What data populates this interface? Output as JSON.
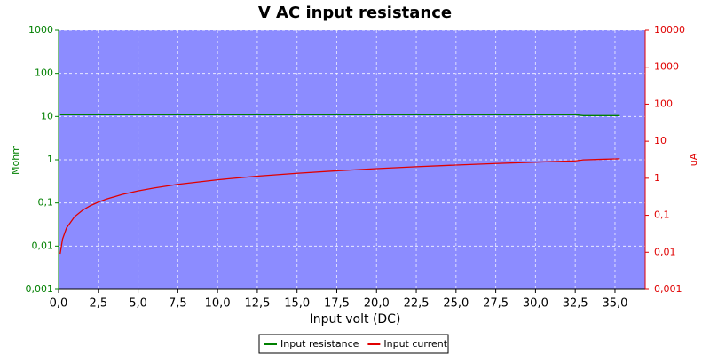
{
  "chart_data": {
    "type": "line",
    "title": "V AC input resistance",
    "xlabel": "Input volt (DC)",
    "ylabel": "Mohm",
    "y2label": "uA",
    "x": [
      0.1,
      0.25,
      0.5,
      1,
      1.5,
      2,
      2.5,
      3,
      4,
      5,
      6,
      7.5,
      10,
      12.5,
      15,
      17.5,
      20,
      22.5,
      25,
      27.5,
      30,
      32.5,
      33,
      34,
      35.3
    ],
    "series": [
      {
        "name": "Input resistance",
        "color": "#008000",
        "values": [
          11,
          11,
          11,
          11,
          11,
          11,
          11,
          11,
          11,
          11,
          11,
          11,
          11,
          11,
          11,
          11,
          11,
          11,
          11,
          11,
          11,
          11,
          10.5,
          10.5,
          10.5
        ]
      },
      {
        "name": "Input current",
        "color": "#e00000",
        "axis": "y2",
        "values": [
          0.0091,
          0.0227,
          0.0455,
          0.0909,
          0.136,
          0.182,
          0.227,
          0.273,
          0.364,
          0.455,
          0.545,
          0.682,
          0.909,
          1.14,
          1.36,
          1.59,
          1.82,
          2.05,
          2.27,
          2.5,
          2.73,
          2.95,
          3.14,
          3.24,
          3.36
        ]
      }
    ],
    "xlim": [
      0,
      36.9
    ],
    "xticks": [
      {
        "value": 0,
        "label": "0,0"
      },
      {
        "value": 2.5,
        "label": "2,5"
      },
      {
        "value": 5,
        "label": "5,0"
      },
      {
        "value": 7.5,
        "label": "7,5"
      },
      {
        "value": 10,
        "label": "10,0"
      },
      {
        "value": 12.5,
        "label": "12,5"
      },
      {
        "value": 15,
        "label": "15,0"
      },
      {
        "value": 17.5,
        "label": "17,5"
      },
      {
        "value": 20,
        "label": "20,0"
      },
      {
        "value": 22.5,
        "label": "22,5"
      },
      {
        "value": 25,
        "label": "25,0"
      },
      {
        "value": 27.5,
        "label": "27,5"
      },
      {
        "value": 30,
        "label": "30,0"
      },
      {
        "value": 32.5,
        "label": "32,5"
      },
      {
        "value": 35,
        "label": "35,0"
      }
    ],
    "ylim": [
      0.001,
      1000
    ],
    "yticks": [
      {
        "value": 0.001,
        "label": "0,001"
      },
      {
        "value": 0.01,
        "label": "0,01"
      },
      {
        "value": 0.1,
        "label": "0,1"
      },
      1,
      10,
      100,
      1000
    ],
    "y2lim": [
      0.001,
      10000
    ],
    "y2ticks": [
      {
        "value": 0.001,
        "label": "0,001"
      },
      {
        "value": 0.01,
        "label": "0,01"
      },
      {
        "value": 0.1,
        "label": "0,1"
      },
      1,
      10,
      100,
      1000,
      10000
    ],
    "log_y": true,
    "log_y2": true,
    "grid": true,
    "legend": "bottom"
  }
}
